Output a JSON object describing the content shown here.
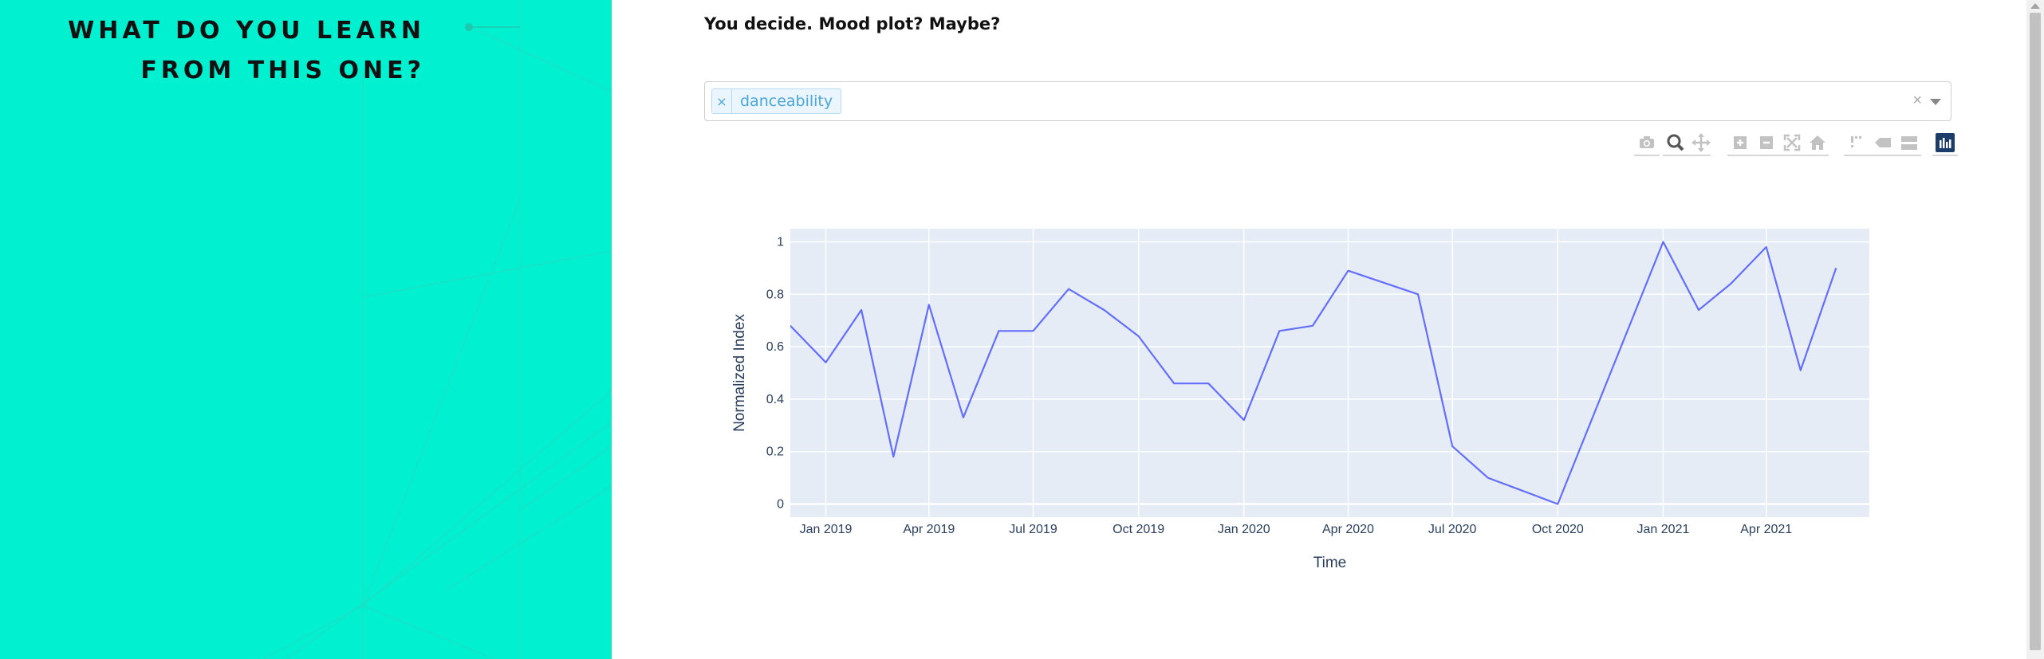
{
  "section": {
    "title_lines": [
      "WHAT DO YOU LEARN",
      "FROM THIS ONE?"
    ]
  },
  "main": {
    "question": "You decide. Mood plot? Maybe?",
    "dropdown": {
      "selected_tags": [
        "danceability"
      ],
      "remove_symbol": "×",
      "clear_symbol": "×"
    }
  },
  "modebar": {
    "buttons": [
      "camera-icon",
      "zoom-icon",
      "pan-icon",
      "zoom-in-icon",
      "zoom-out-icon",
      "autoscale-icon",
      "reset-axes-icon",
      "spike-lines-icon",
      "hover-closest-icon",
      "hover-compare-icon",
      "plotly-logo-icon"
    ]
  },
  "colors": {
    "panel": "#00f0d0",
    "line": "#636efa",
    "plot_bg": "#e5ecf6",
    "tag_text": "#4aa6dd"
  },
  "chart_data": {
    "type": "line",
    "xlabel": "Time",
    "ylabel": "Normalized Index",
    "x_ticks": [
      "Jan 2019",
      "Apr 2019",
      "Jul 2019",
      "Oct 2019",
      "Jan 2020",
      "Apr 2020",
      "Jul 2020",
      "Oct 2020",
      "Jan 2021",
      "Apr 2021"
    ],
    "y_ticks": [
      "0",
      "0.2",
      "0.4",
      "0.6",
      "0.8",
      "1"
    ],
    "ylim": [
      -0.05,
      1.05
    ],
    "xlim": [
      "2018-12-01",
      "2021-06-30"
    ],
    "grid": true,
    "series": [
      {
        "x": [
          "2018-12-01",
          "2019-01-01",
          "2019-02-01",
          "2019-03-01",
          "2019-04-01",
          "2019-05-01",
          "2019-06-01",
          "2019-07-01",
          "2019-08-01",
          "2019-09-01",
          "2019-10-01",
          "2019-11-01",
          "2019-12-01",
          "2020-01-01",
          "2020-02-01",
          "2020-03-01",
          "2020-04-01",
          "2020-06-01",
          "2020-07-01",
          "2020-08-01",
          "2020-10-01",
          "2021-01-01",
          "2021-02-01",
          "2021-03-01",
          "2021-04-01",
          "2021-05-01",
          "2021-06-01"
        ],
        "values": [
          0.68,
          0.54,
          0.74,
          0.18,
          0.76,
          0.33,
          0.66,
          0.66,
          0.82,
          0.74,
          0.64,
          0.46,
          0.46,
          0.32,
          0.66,
          0.68,
          0.89,
          0.8,
          0.22,
          0.1,
          0.0,
          1.0,
          0.74,
          0.84,
          0.98,
          0.51,
          0.9
        ]
      }
    ]
  }
}
